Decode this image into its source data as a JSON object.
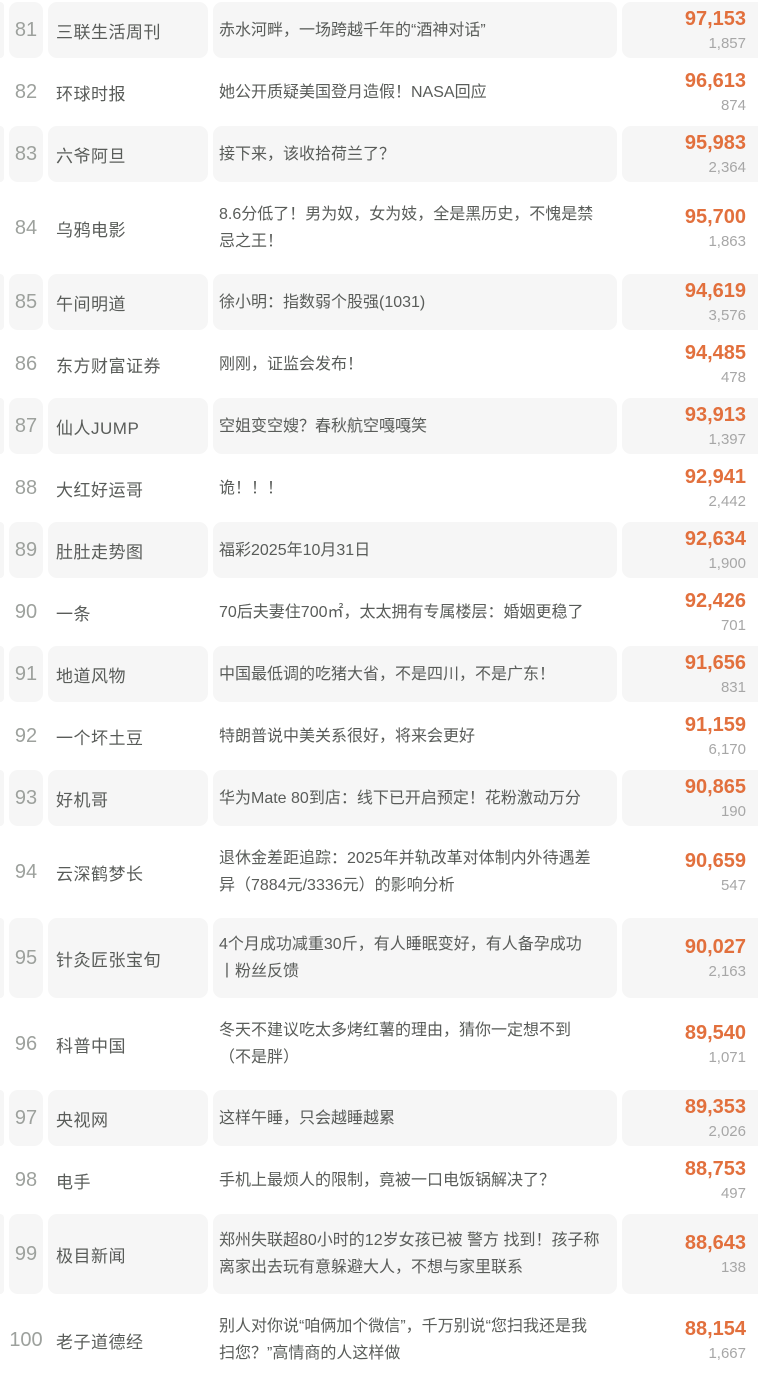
{
  "colors": {
    "accent_orange": "#e2703d",
    "alt_row_background": "#f6f6f6",
    "primary_text": "#595c59",
    "muted_text": "#a7a7a7",
    "rank_text": "#9da19d"
  },
  "rows": [
    {
      "rank": "81",
      "name": "三联生活周刊",
      "title": "赤水河畔，一场跨越千年的“酒神对话”",
      "views": "97,153",
      "secondary": "1,857"
    },
    {
      "rank": "82",
      "name": "环球时报",
      "title": "她公开质疑美国登月造假！NASA回应",
      "views": "96,613",
      "secondary": "874"
    },
    {
      "rank": "83",
      "name": "六爷阿旦",
      "title": "接下来，该收拾荷兰了？",
      "views": "95,983",
      "secondary": "2,364"
    },
    {
      "rank": "84",
      "name": "乌鸦电影",
      "title": "8.6分低了！男为奴，女为妓，全是黑历史，不愧是禁忌之王！",
      "views": "95,700",
      "secondary": "1,863"
    },
    {
      "rank": "85",
      "name": "午间明道",
      "title": "徐小明：指数弱个股强(1031)",
      "views": "94,619",
      "secondary": "3,576"
    },
    {
      "rank": "86",
      "name": "东方财富证券",
      "title": "刚刚，证监会发布！",
      "views": "94,485",
      "secondary": "478"
    },
    {
      "rank": "87",
      "name": "仙人JUMP",
      "title": "空姐变空嫂？春秋航空嘎嘎笑",
      "views": "93,913",
      "secondary": "1,397"
    },
    {
      "rank": "88",
      "name": "大红好运哥",
      "title": "诡！！！",
      "views": "92,941",
      "secondary": "2,442"
    },
    {
      "rank": "89",
      "name": "肚肚走势图",
      "title": "福彩2025年10月31日",
      "views": "92,634",
      "secondary": "1,900"
    },
    {
      "rank": "90",
      "name": "一条",
      "title": "70后夫妻住700㎡，太太拥有专属楼层：婚姻更稳了",
      "views": "92,426",
      "secondary": "701"
    },
    {
      "rank": "91",
      "name": "地道风物",
      "title": "中国最低调的吃猪大省，不是四川，不是广东！",
      "views": "91,656",
      "secondary": "831"
    },
    {
      "rank": "92",
      "name": "一个坏土豆",
      "title": "特朗普说中美关系很好，将来会更好",
      "views": "91,159",
      "secondary": "6,170"
    },
    {
      "rank": "93",
      "name": "好机哥",
      "title": "华为Mate 80到店：线下已开启预定！花粉激动万分",
      "views": "90,865",
      "secondary": "190"
    },
    {
      "rank": "94",
      "name": "云深鹤梦长",
      "title": "退休金差距追踪：2025年并轨改革对体制内外待遇差异（7884元/3336元）的影响分析",
      "views": "90,659",
      "secondary": "547"
    },
    {
      "rank": "95",
      "name": "针灸匠张宝旬",
      "title": "4个月成功减重30斤，有人睡眠变好，有人备孕成功 丨粉丝反馈",
      "views": "90,027",
      "secondary": "2,163"
    },
    {
      "rank": "96",
      "name": "科普中国",
      "title": "冬天不建议吃太多烤红薯的理由，猜你一定想不到（不是胖）",
      "views": "89,540",
      "secondary": "1,071"
    },
    {
      "rank": "97",
      "name": "央视网",
      "title": "这样午睡，只会越睡越累",
      "views": "89,353",
      "secondary": "2,026"
    },
    {
      "rank": "98",
      "name": "电手",
      "title": "手机上最烦人的限制，竟被一口电饭锅解决了？",
      "views": "88,753",
      "secondary": "497"
    },
    {
      "rank": "99",
      "name": "极目新闻",
      "title": "郑州失联超80小时的12岁女孩已被 警方 找到！孩子称离家出去玩有意躲避大人，不想与家里联系",
      "views": "88,643",
      "secondary": "138"
    },
    {
      "rank": "100",
      "name": "老子道德经",
      "title": "别人对你说“咱俩加个微信”，千万别说“您扫我还是我扫您？”高情商的人这样做",
      "views": "88,154",
      "secondary": "1,667"
    }
  ]
}
